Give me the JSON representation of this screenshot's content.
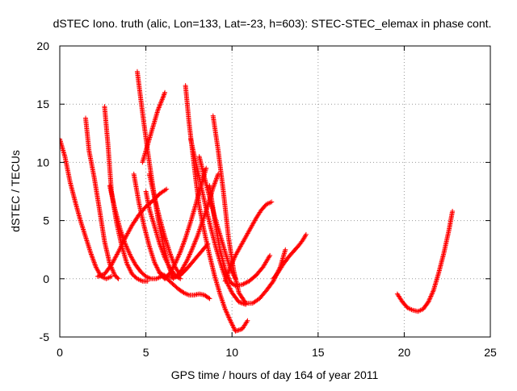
{
  "chart_data": {
    "type": "scatter",
    "title": "dSTEC Iono. truth (alic, Lon=133, Lat=-23, h=603): STEC-STEC_elemax in phase cont.",
    "xlabel": "GPS time / hours of day 164 of year 2011",
    "ylabel": "dSTEC  / TECUs",
    "xlim": [
      0,
      25
    ],
    "ylim": [
      -5,
      20
    ],
    "xticks": [
      0,
      5,
      10,
      15,
      20,
      25
    ],
    "yticks": [
      -5,
      0,
      5,
      10,
      15,
      20
    ],
    "grid": true,
    "marker": "+",
    "color": "#ff0000",
    "series": [
      {
        "x": [
          0.0,
          0.3,
          0.6,
          0.9,
          1.2,
          1.5,
          1.8,
          2.1,
          2.4,
          2.7,
          3.0
        ],
        "y": [
          12.0,
          10.5,
          8.3,
          6.6,
          5.0,
          3.6,
          2.2,
          1.0,
          0.2,
          0.0,
          0.2
        ]
      },
      {
        "x": [
          1.5,
          1.7,
          2.0,
          2.3,
          2.6,
          2.9,
          3.2,
          3.4
        ],
        "y": [
          13.8,
          11.0,
          8.7,
          6.0,
          3.2,
          1.3,
          0.3,
          0.0
        ]
      },
      {
        "x": [
          2.6,
          2.8,
          3.0,
          3.3,
          3.6,
          3.9,
          4.2,
          4.5,
          4.8,
          5.1
        ],
        "y": [
          14.8,
          11.5,
          7.5,
          4.8,
          2.8,
          1.3,
          0.4,
          0.0,
          -0.2,
          -0.2
        ]
      },
      {
        "x": [
          2.9,
          3.2,
          3.5,
          3.8,
          4.1,
          4.4,
          4.7,
          5.0,
          5.3,
          5.6,
          5.9
        ],
        "y": [
          8.0,
          6.0,
          4.3,
          3.0,
          2.0,
          1.2,
          0.6,
          0.2,
          0.0,
          0.0,
          0.2
        ]
      },
      {
        "x": [
          4.5,
          4.8,
          5.1,
          5.4,
          5.7,
          6.0,
          6.3,
          6.6
        ],
        "y": [
          17.8,
          14.3,
          11.0,
          8.0,
          5.2,
          3.0,
          1.2,
          0.0
        ]
      },
      {
        "x": [
          4.3,
          4.6,
          4.9,
          5.2,
          5.5,
          5.8,
          6.1
        ],
        "y": [
          9.0,
          6.5,
          4.5,
          2.8,
          1.4,
          0.5,
          0.0
        ]
      },
      {
        "x": [
          5.0,
          5.2,
          5.5,
          5.8,
          6.1,
          6.4,
          6.7,
          7.0
        ],
        "y": [
          7.5,
          6.0,
          4.5,
          3.0,
          1.8,
          0.9,
          0.3,
          0.0
        ]
      },
      {
        "x": [
          4.8,
          5.1,
          5.4,
          5.7,
          6.0,
          6.1
        ],
        "y": [
          10.0,
          11.5,
          13.0,
          14.5,
          15.6,
          16.0
        ]
      },
      {
        "x": [
          5.2,
          5.5,
          5.8,
          6.1,
          6.4,
          6.7,
          7.0
        ],
        "y": [
          9.0,
          7.0,
          5.2,
          3.6,
          2.2,
          1.0,
          0.3
        ]
      },
      {
        "x": [
          6.0,
          6.3,
          6.6,
          6.9,
          7.2,
          7.5,
          7.8,
          8.1,
          8.4,
          8.7
        ],
        "y": [
          0.3,
          -0.1,
          -0.5,
          -0.9,
          -1.2,
          -1.4,
          -1.4,
          -1.3,
          -1.4,
          -1.7
        ]
      },
      {
        "x": [
          7.3,
          7.5,
          7.7,
          7.9,
          8.1,
          8.4,
          8.7,
          9.0,
          9.3,
          9.6,
          9.9,
          10.2,
          10.6,
          10.9
        ],
        "y": [
          16.6,
          13.5,
          11.0,
          8.5,
          6.2,
          4.0,
          2.0,
          0.2,
          -1.3,
          -2.6,
          -3.6,
          -4.5,
          -4.3,
          -3.6
        ]
      },
      {
        "x": [
          7.6,
          7.9,
          8.2,
          8.5,
          8.8,
          9.1,
          9.4,
          9.7,
          10.0,
          10.4,
          10.8
        ],
        "y": [
          12.0,
          10.0,
          8.0,
          6.0,
          4.2,
          2.5,
          1.0,
          -0.3,
          -1.2,
          -2.0,
          -2.2
        ]
      },
      {
        "x": [
          8.1,
          8.4,
          8.7,
          9.0,
          9.3,
          9.6,
          9.9,
          10.2
        ],
        "y": [
          10.5,
          8.7,
          7.0,
          5.3,
          3.8,
          2.3,
          0.9,
          0.0
        ]
      },
      {
        "x": [
          8.9,
          9.2,
          9.5,
          9.8,
          10.1,
          10.4,
          10.8,
          11.2,
          11.6,
          12.0,
          12.4,
          12.8,
          13.1
        ],
        "y": [
          14.0,
          11.0,
          7.5,
          3.5,
          0.7,
          -1.2,
          -2.1,
          -2.1,
          -1.7,
          -1.0,
          -0.2,
          1.0,
          2.5
        ]
      },
      {
        "x": [
          8.7,
          9.0,
          9.3,
          9.6,
          9.9,
          10.2,
          10.6,
          11.0,
          11.4,
          11.8,
          12.2
        ],
        "y": [
          8.0,
          5.0,
          2.5,
          0.8,
          -0.3,
          -0.6,
          -0.5,
          -0.2,
          0.3,
          1.0,
          2.0
        ]
      },
      {
        "x": [
          6.1,
          6.4,
          6.7,
          7.0,
          7.3,
          7.6,
          7.9,
          8.2,
          8.5
        ],
        "y": [
          0.0,
          0.5,
          1.3,
          2.3,
          3.5,
          4.9,
          6.4,
          8.0,
          9.5
        ]
      },
      {
        "x": [
          6.8,
          7.1,
          7.4,
          7.7,
          8.0,
          8.3,
          8.6,
          8.9,
          9.2
        ],
        "y": [
          0.2,
          0.8,
          1.6,
          2.6,
          3.7,
          5.0,
          6.3,
          7.8,
          9.0
        ]
      },
      {
        "x": [
          2.2,
          2.6,
          3.0,
          3.4,
          3.8,
          4.2,
          4.6,
          5.0,
          5.4,
          5.8,
          6.2
        ],
        "y": [
          0.2,
          0.4,
          1.2,
          2.3,
          3.5,
          4.6,
          5.5,
          6.2,
          6.7,
          7.3,
          7.7
        ]
      },
      {
        "x": [
          5.8,
          6.2,
          6.6,
          7.0,
          7.4,
          7.8,
          8.2,
          8.6
        ],
        "y": [
          0.5,
          0.2,
          0.1,
          0.3,
          0.9,
          1.6,
          2.3,
          3.0
        ]
      },
      {
        "x": [
          9.6,
          9.9,
          10.2,
          10.5,
          10.8,
          11.1,
          11.4,
          11.7,
          12.0,
          12.3
        ],
        "y": [
          -0.2,
          1.0,
          2.0,
          2.8,
          3.6,
          4.4,
          5.2,
          5.9,
          6.4,
          6.6
        ]
      },
      {
        "x": [
          12.4,
          12.7,
          13.0,
          13.3,
          13.6,
          13.9,
          14.1,
          14.3
        ],
        "y": [
          0.0,
          0.6,
          1.3,
          1.9,
          2.4,
          2.9,
          3.3,
          3.8
        ]
      },
      {
        "x": [
          19.6,
          19.9,
          20.2,
          20.5,
          20.8,
          21.1,
          21.4,
          21.7,
          22.0,
          22.3,
          22.6,
          22.8
        ],
        "y": [
          -1.3,
          -2.0,
          -2.5,
          -2.7,
          -2.8,
          -2.6,
          -2.0,
          -1.0,
          0.5,
          2.2,
          4.2,
          5.8
        ]
      }
    ]
  }
}
